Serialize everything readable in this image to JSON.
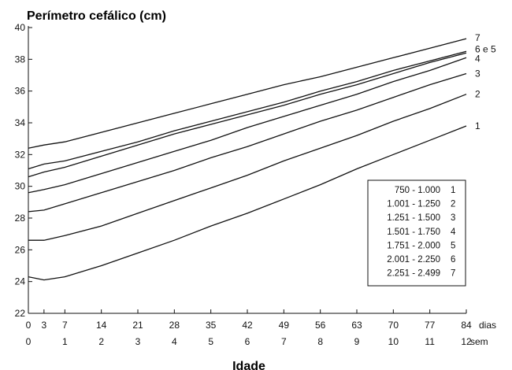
{
  "chart_data": {
    "type": "line",
    "title": "Perímetro cefálico (cm)",
    "xlabel": "Idade",
    "ylabel": "",
    "ylim": [
      22,
      40
    ],
    "xlim": [
      0,
      84
    ],
    "yticks": [
      "22",
      "24",
      "26",
      "28",
      "30",
      "32",
      "34",
      "36",
      "38",
      "40"
    ],
    "xticks_days": [
      "0",
      "3",
      "7",
      "14",
      "21",
      "28",
      "35",
      "42",
      "49",
      "56",
      "63",
      "70",
      "77",
      "84"
    ],
    "xticks_weeks": [
      "0",
      "1",
      "2",
      "3",
      "4",
      "5",
      "6",
      "7",
      "8",
      "9",
      "10",
      "11",
      "12"
    ],
    "x_unit_days": "dias",
    "x_unit_weeks": "sem",
    "x": [
      0,
      3,
      7,
      14,
      21,
      28,
      35,
      42,
      49,
      56,
      63,
      70,
      77,
      84
    ],
    "series": [
      {
        "name": "1",
        "end_label": "1",
        "values": [
          24.3,
          24.1,
          24.3,
          25.0,
          25.8,
          26.6,
          27.5,
          28.3,
          29.2,
          30.1,
          31.1,
          32.0,
          32.9,
          33.8
        ]
      },
      {
        "name": "2",
        "end_label": "2",
        "values": [
          26.6,
          26.6,
          26.9,
          27.5,
          28.3,
          29.1,
          29.9,
          30.7,
          31.6,
          32.4,
          33.2,
          34.1,
          34.9,
          35.8
        ]
      },
      {
        "name": "3",
        "end_label": "3",
        "values": [
          28.4,
          28.5,
          28.9,
          29.6,
          30.3,
          31.0,
          31.8,
          32.5,
          33.3,
          34.1,
          34.8,
          35.6,
          36.4,
          37.1
        ]
      },
      {
        "name": "4",
        "end_label": "4",
        "values": [
          29.6,
          29.8,
          30.1,
          30.8,
          31.5,
          32.2,
          32.9,
          33.7,
          34.4,
          35.1,
          35.8,
          36.6,
          37.3,
          38.1
        ]
      },
      {
        "name": "5",
        "end_label": "6 e 5",
        "values": [
          30.6,
          30.9,
          31.2,
          31.9,
          32.6,
          33.3,
          33.9,
          34.5,
          35.1,
          35.8,
          36.4,
          37.1,
          37.8,
          38.4
        ]
      },
      {
        "name": "6",
        "end_label": "",
        "values": [
          31.1,
          31.4,
          31.6,
          32.2,
          32.8,
          33.5,
          34.1,
          34.7,
          35.3,
          36.0,
          36.6,
          37.3,
          37.9,
          38.5
        ]
      },
      {
        "name": "7",
        "end_label": "7",
        "values": [
          32.4,
          32.6,
          32.8,
          33.4,
          34.0,
          34.6,
          35.2,
          35.8,
          36.4,
          36.9,
          37.5,
          38.1,
          38.7,
          39.3
        ]
      }
    ],
    "legend": {
      "position": "bottom-right",
      "rows": [
        {
          "range": "750 - 1.000",
          "curve": "1"
        },
        {
          "range": "1.001 - 1.250",
          "curve": "2"
        },
        {
          "range": "1.251 - 1.500",
          "curve": "3"
        },
        {
          "range": "1.501 - 1.750",
          "curve": "4"
        },
        {
          "range": "1.751 - 2.000",
          "curve": "5"
        },
        {
          "range": "2.001 - 2.250",
          "curve": "6"
        },
        {
          "range": "2.251 - 2.499",
          "curve": "7"
        }
      ]
    },
    "grid": false,
    "colors": {
      "line": "#111111",
      "background": "#ffffff"
    }
  }
}
